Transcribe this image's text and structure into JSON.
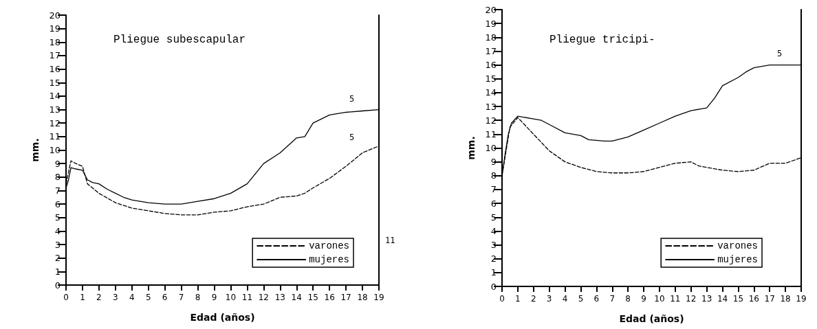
{
  "chart_data": [
    {
      "type": "line",
      "title": "Pliegue subescapular",
      "xlabel": "Edad (años)",
      "ylabel": "mm.",
      "xlim": [
        0,
        19
      ],
      "xticks": [
        0,
        1,
        2,
        3,
        4,
        5,
        6,
        7,
        8,
        9,
        10,
        11,
        12,
        13,
        14,
        15,
        16,
        17,
        18,
        19
      ],
      "ylim": [
        0,
        20
      ],
      "yticks": [
        0,
        1,
        2,
        3,
        4,
        5,
        6,
        7,
        8,
        9,
        10,
        11,
        12,
        13,
        14,
        15,
        16,
        17,
        18,
        19,
        20
      ],
      "grid": false,
      "legend": "bottom right",
      "marker": "none",
      "annotations": [
        "5",
        "5",
        "11"
      ],
      "series": [
        {
          "name": "varones",
          "color": "#000000",
          "line_style": "dashed",
          "x": [
            0,
            0.3,
            0.6,
            1,
            1.3,
            2,
            3,
            4,
            5,
            6,
            7,
            8,
            9,
            10,
            11,
            12,
            13,
            14,
            14.5,
            15,
            16,
            17,
            18,
            19
          ],
          "values": [
            7.5,
            9.2,
            9,
            8.8,
            7.5,
            6.8,
            6.1,
            5.7,
            5.5,
            5.3,
            5.2,
            5.2,
            5.4,
            5.5,
            5.8,
            6,
            6.5,
            6.6,
            6.8,
            7.2,
            7.9,
            8.8,
            9.8,
            10.3
          ]
        },
        {
          "name": "mujeres",
          "color": "#000000",
          "line_style": "solid",
          "x": [
            0,
            0.15,
            0.3,
            0.6,
            1,
            1.3,
            1.6,
            2,
            2.5,
            3,
            3.5,
            4,
            5,
            6,
            7,
            8,
            9,
            10,
            11,
            12,
            13,
            14,
            14.5,
            15,
            16,
            17,
            18,
            19
          ],
          "values": [
            7.2,
            7.8,
            8.7,
            8.6,
            8.5,
            7.8,
            7.6,
            7.5,
            7.1,
            6.8,
            6.5,
            6.3,
            6.1,
            6,
            6,
            6.2,
            6.4,
            6.8,
            7.5,
            9,
            9.8,
            10.9,
            11,
            12,
            12.6,
            12.8,
            12.9,
            13
          ]
        }
      ]
    },
    {
      "type": "line",
      "title": "Pliegue tricipi-",
      "xlabel": "Edad (años)",
      "ylabel": "mm.",
      "xlim": [
        0,
        19
      ],
      "xticks": [
        0,
        1,
        2,
        3,
        4,
        5,
        6,
        7,
        8,
        9,
        10,
        11,
        12,
        13,
        14,
        15,
        16,
        17,
        18,
        19
      ],
      "ylim": [
        0,
        20
      ],
      "yticks": [
        0,
        1,
        2,
        3,
        4,
        5,
        6,
        7,
        8,
        9,
        10,
        11,
        12,
        13,
        14,
        15,
        16,
        17,
        18,
        19,
        20
      ],
      "grid": false,
      "legend": "bottom right",
      "marker": "none",
      "annotations": [
        "5"
      ],
      "series": [
        {
          "name": "varones",
          "color": "#000000",
          "line_style": "dashed",
          "x": [
            0,
            0.5,
            1,
            2,
            3,
            4,
            5,
            6,
            7,
            8,
            9,
            10,
            11,
            12,
            12.5,
            13,
            14,
            15,
            16,
            17,
            18,
            19
          ],
          "values": [
            8,
            11.5,
            12.2,
            11,
            9.8,
            9,
            8.6,
            8.3,
            8.2,
            8.2,
            8.3,
            8.6,
            8.9,
            9,
            8.7,
            8.6,
            8.4,
            8.3,
            8.4,
            8.9,
            8.9,
            9.3
          ]
        },
        {
          "name": "mujeres",
          "color": "#000000",
          "line_style": "solid",
          "x": [
            0,
            0.2,
            0.4,
            0.6,
            1,
            2,
            2.5,
            3,
            4,
            5,
            5.5,
            6.5,
            7,
            8,
            9,
            10,
            11,
            12,
            13,
            13.5,
            14,
            15,
            15.5,
            16,
            17,
            19
          ],
          "values": [
            8,
            9.6,
            11,
            11.8,
            12.3,
            12.1,
            12,
            11.7,
            11.1,
            10.9,
            10.6,
            10.5,
            10.5,
            10.8,
            11.3,
            11.8,
            12.3,
            12.7,
            12.9,
            13.6,
            14.5,
            15.1,
            15.5,
            15.8,
            16,
            16
          ]
        }
      ]
    }
  ]
}
